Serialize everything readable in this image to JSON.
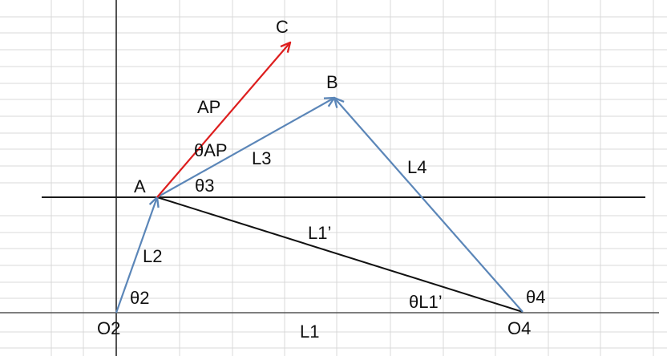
{
  "colors": {
    "grid": "#d9d9d9",
    "axis": "#1a1a1a",
    "link_blue": "#5b86b8",
    "link_red": "#dd1e1e",
    "ground_line": "#555555",
    "text": "#111111"
  },
  "points": {
    "C": "C",
    "B": "B",
    "A": "A",
    "O2": "O2",
    "O4": "O4"
  },
  "links": {
    "AP": "AP",
    "L3": "L3",
    "L4": "L4",
    "L2": "L2",
    "L1_prime": "L1’",
    "L1": "L1"
  },
  "angles": {
    "theta_ap": "θAP",
    "theta3": "θ3",
    "theta2": "θ2",
    "theta4": "θ4",
    "theta_l1_prime": "θL1’"
  }
}
